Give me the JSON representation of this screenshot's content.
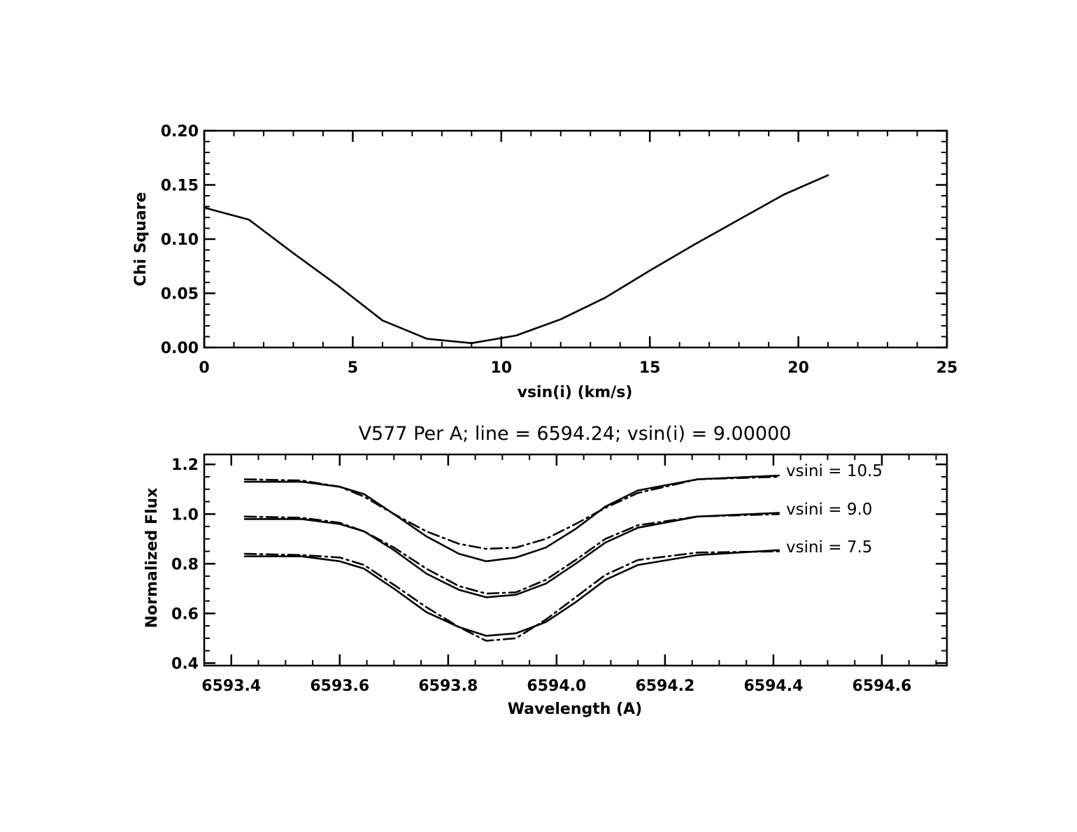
{
  "chart_data": [
    {
      "type": "line",
      "title": "",
      "xlabel": "vsin(i) (km/s)",
      "ylabel": "Chi Square",
      "xlim": [
        0,
        25
      ],
      "ylim": [
        0.0,
        0.2
      ],
      "xticks": [
        "0",
        "5",
        "10",
        "15",
        "20",
        "25"
      ],
      "yticks": [
        "0.00",
        "0.05",
        "0.10",
        "0.15",
        "0.20"
      ],
      "grid": false,
      "series": [
        {
          "style": "solid",
          "x": [
            0,
            1.5,
            3.0,
            4.5,
            6.0,
            7.5,
            9.0,
            10.5,
            12.0,
            13.5,
            15.0,
            16.5,
            18.0,
            19.5,
            21.0
          ],
          "y": [
            0.129,
            0.118,
            0.087,
            0.057,
            0.025,
            0.008,
            0.004,
            0.011,
            0.026,
            0.046,
            0.071,
            0.095,
            0.118,
            0.141,
            0.159
          ]
        }
      ]
    },
    {
      "type": "line",
      "title": "V577 Per A; line = 6594.24; vsin(i) = 9.00000",
      "xlabel": "Wavelength (A)",
      "ylabel": "Normalized Flux",
      "xlim": [
        6593.35,
        6594.72
      ],
      "ylim": [
        0.39,
        1.24
      ],
      "xticks": [
        "6593.4",
        "6593.6",
        "6593.8",
        "6594.0",
        "6594.2",
        "6594.4",
        "6594.6"
      ],
      "yticks": [
        "0.4",
        "0.6",
        "0.8",
        "1.0",
        "1.2"
      ],
      "grid": false,
      "annotations": [
        "vsini = 10.5",
        "vsini = 9.0",
        "vsini = 7.5"
      ],
      "x": [
        6593.425,
        6593.53,
        6593.6,
        6593.645,
        6593.7,
        6593.76,
        6593.82,
        6593.87,
        6593.925,
        6593.98,
        6594.035,
        6594.09,
        6594.15,
        6594.26,
        6594.41
      ],
      "series": [
        {
          "style": "solid",
          "group": "vsini = 10.5",
          "y": [
            1.13,
            1.13,
            1.11,
            1.08,
            1.0,
            0.91,
            0.84,
            0.81,
            0.825,
            0.865,
            0.94,
            1.03,
            1.095,
            1.14,
            1.155
          ]
        },
        {
          "style": "dashdot",
          "group": "vsini = 10.5",
          "y": [
            1.14,
            1.135,
            1.11,
            1.07,
            1.0,
            0.93,
            0.88,
            0.86,
            0.865,
            0.9,
            0.96,
            1.025,
            1.085,
            1.14,
            1.15
          ]
        },
        {
          "style": "solid",
          "group": "vsini = 9.0",
          "y": [
            0.98,
            0.98,
            0.96,
            0.93,
            0.855,
            0.76,
            0.695,
            0.665,
            0.675,
            0.72,
            0.8,
            0.885,
            0.945,
            0.99,
            1.005
          ]
        },
        {
          "style": "dashdot",
          "group": "vsini = 9.0",
          "y": [
            0.99,
            0.985,
            0.965,
            0.93,
            0.865,
            0.78,
            0.71,
            0.68,
            0.685,
            0.735,
            0.815,
            0.9,
            0.955,
            0.99,
            1.0
          ]
        },
        {
          "style": "solid",
          "group": "vsini = 7.5",
          "y": [
            0.83,
            0.83,
            0.81,
            0.78,
            0.7,
            0.605,
            0.545,
            0.51,
            0.52,
            0.565,
            0.645,
            0.735,
            0.795,
            0.835,
            0.855
          ]
        },
        {
          "style": "dashdot",
          "group": "vsini = 7.5",
          "y": [
            0.84,
            0.835,
            0.825,
            0.795,
            0.715,
            0.625,
            0.545,
            0.49,
            0.5,
            0.575,
            0.665,
            0.755,
            0.815,
            0.845,
            0.85
          ]
        }
      ]
    }
  ]
}
